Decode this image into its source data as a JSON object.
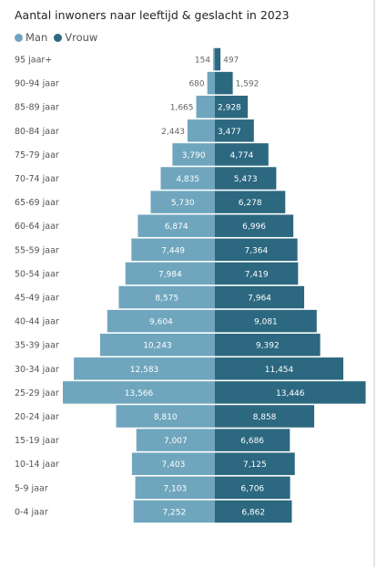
{
  "chart_data": {
    "type": "bar",
    "orientation": "horizontal-pyramid",
    "title": "Aantal inwoners naar leeftijd & geslacht in 2023",
    "categories": [
      "95 jaar+",
      "90-94 jaar",
      "85-89 jaar",
      "80-84 jaar",
      "75-79 jaar",
      "70-74 jaar",
      "65-69 jaar",
      "60-64 jaar",
      "55-59 jaar",
      "50-54 jaar",
      "45-49 jaar",
      "40-44 jaar",
      "35-39 jaar",
      "30-34 jaar",
      "25-29 jaar",
      "20-24 jaar",
      "15-19 jaar",
      "10-14 jaar",
      "5-9 jaar",
      "0-4 jaar"
    ],
    "series": [
      {
        "name": "Man",
        "color": "#6FA6BE",
        "values": [
          154,
          680,
          1665,
          2443,
          3790,
          4835,
          5730,
          6874,
          7449,
          7984,
          8575,
          9604,
          10243,
          12583,
          13566,
          8810,
          7007,
          7403,
          7103,
          7252
        ],
        "labels": [
          "154",
          "680",
          "1,665",
          "2,443",
          "3,790",
          "4,835",
          "5,730",
          "6,874",
          "7,449",
          "7,984",
          "8,575",
          "9,604",
          "10,243",
          "12,583",
          "13,566",
          "8,810",
          "7,007",
          "7,403",
          "7,103",
          "7,252"
        ]
      },
      {
        "name": "Vrouw",
        "color": "#2C6880",
        "values": [
          497,
          1592,
          2928,
          3477,
          4774,
          5473,
          6278,
          6996,
          7364,
          7419,
          7964,
          9081,
          9392,
          11454,
          13446,
          8858,
          6686,
          7125,
          6706,
          6862
        ],
        "labels": [
          "497",
          "1,592",
          "2,928",
          "3,477",
          "4,774",
          "5,473",
          "6,278",
          "6,996",
          "7,364",
          "7,419",
          "7,964",
          "9,081",
          "9,392",
          "11,454",
          "13,446",
          "8,858",
          "6,686",
          "7,125",
          "6,706",
          "6,862"
        ]
      }
    ],
    "legend": "top-left",
    "grid": false
  }
}
